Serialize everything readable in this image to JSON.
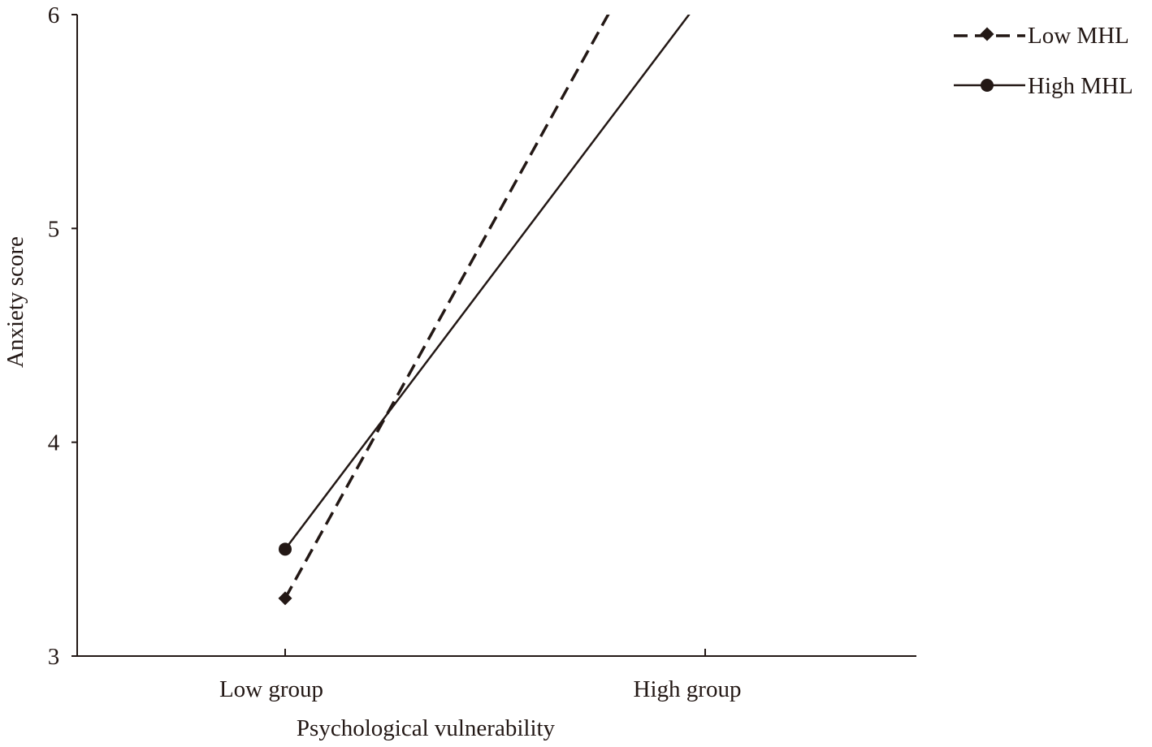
{
  "chart_data": {
    "type": "line",
    "title": "",
    "xlabel": "Psychological vulnerability",
    "ylabel": "Anxiety score",
    "categories": [
      "Low group",
      "High group"
    ],
    "ylim": [
      3,
      6
    ],
    "yticks": [
      3,
      4,
      5,
      6
    ],
    "grid": false,
    "legend_position": "top-right",
    "line_color": "#231815",
    "series": [
      {
        "name": "Low MHL",
        "values": [
          3.27,
          6.82
        ],
        "style": "dashed",
        "marker": "diamond"
      },
      {
        "name": "High MHL",
        "values": [
          3.5,
          6.1
        ],
        "style": "solid",
        "marker": "circle"
      }
    ]
  }
}
